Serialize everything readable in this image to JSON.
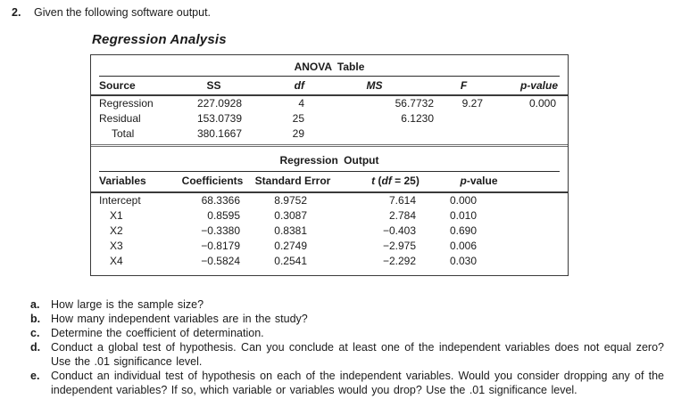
{
  "problem": {
    "number": "2.",
    "intro": "Given the following software output.",
    "title": "Regression Analysis"
  },
  "anova": {
    "title": "ANOVA Table",
    "headers": {
      "source": "Source",
      "ss": "SS",
      "df": "df",
      "ms": "MS",
      "f": "F",
      "p": "p-value"
    },
    "rows": [
      {
        "source": "Regression",
        "ss": "227.0928",
        "df": "4",
        "ms": "56.7732",
        "f": "9.27",
        "p": "0.000"
      },
      {
        "source": "Residual",
        "ss": "153.0739",
        "df": "25",
        "ms": "6.1230",
        "f": "",
        "p": ""
      },
      {
        "source": "Total",
        "ss": "380.1667",
        "df": "29",
        "ms": "",
        "f": "",
        "p": ""
      }
    ]
  },
  "regression_output": {
    "title": "Regression Output",
    "headers": {
      "variables": "Variables",
      "coefficients": "Coefficients",
      "std_error": "Standard Error",
      "t_var": "t",
      "t_paren": " (",
      "t_df": "df",
      "t_tail": " = 25)",
      "p_var": "p",
      "p_tail": "-value"
    },
    "rows": [
      {
        "variable": "Intercept",
        "coefficient": "68.3366",
        "std_error": "8.9752",
        "t": "7.614",
        "p": "0.000"
      },
      {
        "variable": "X1",
        "coefficient": "0.8595",
        "std_error": "0.3087",
        "t": "2.784",
        "p": "0.010"
      },
      {
        "variable": "X2",
        "coefficient": "−0.3380",
        "std_error": "0.8381",
        "t": "−0.403",
        "p": "0.690"
      },
      {
        "variable": "X3",
        "coefficient": "−0.8179",
        "std_error": "0.2749",
        "t": "−2.975",
        "p": "0.006"
      },
      {
        "variable": "X4",
        "coefficient": "−0.5824",
        "std_error": "0.2541",
        "t": "−2.292",
        "p": "0.030"
      }
    ]
  },
  "questions": [
    {
      "label": "a.",
      "text": "How large is the sample size?"
    },
    {
      "label": "b.",
      "text": "How many independent variables are in the study?"
    },
    {
      "label": "c.",
      "text": "Determine the coefficient of determination."
    },
    {
      "label": "d.",
      "text": "Conduct a global test of hypothesis. Can you conclude at least one of the independent variables does not equal zero? Use the .01 significance level."
    },
    {
      "label": "e.",
      "text": "Conduct an individual test of hypothesis on each of the independent variables. Would you consider dropping any of the independent variables? If so, which variable or variables would you drop? Use the .01 significance level."
    }
  ]
}
